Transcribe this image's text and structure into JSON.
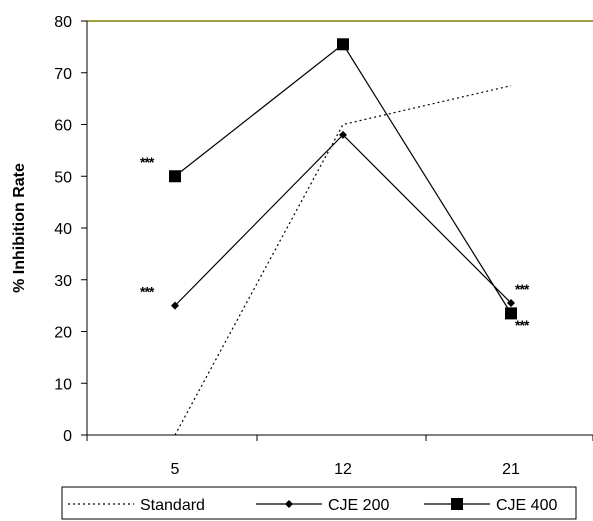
{
  "chart_data": {
    "type": "line",
    "categories": [
      "5",
      "12",
      "21"
    ],
    "ylabel": "% Inhibition Rate",
    "xlabel": "",
    "title": "",
    "ylim": [
      0,
      80
    ],
    "yticks": [
      0,
      10,
      20,
      30,
      40,
      50,
      60,
      70,
      80
    ],
    "grid": false,
    "legend_position": "bottom",
    "series": [
      {
        "name": "Standard",
        "style": "dotted",
        "marker": "none",
        "values": [
          0,
          60,
          67.5
        ],
        "color": "#000000"
      },
      {
        "name": "CJE 200",
        "style": "solid",
        "marker": "diamond",
        "values": [
          25,
          58,
          25.5
        ],
        "color": "#000000"
      },
      {
        "name": "CJE 400",
        "style": "solid",
        "marker": "square",
        "values": [
          50,
          75.5,
          23.5
        ],
        "color": "#000000"
      }
    ],
    "annotations": [
      {
        "text": "***",
        "category": "5",
        "y": 53.5,
        "side": "left"
      },
      {
        "text": "***",
        "category": "5",
        "y": 28.5,
        "side": "left"
      },
      {
        "text": "***",
        "category": "21",
        "y": 29,
        "side": "right"
      },
      {
        "text": "***",
        "category": "21",
        "y": 22,
        "side": "right"
      }
    ],
    "top_border_color": "#808000"
  }
}
